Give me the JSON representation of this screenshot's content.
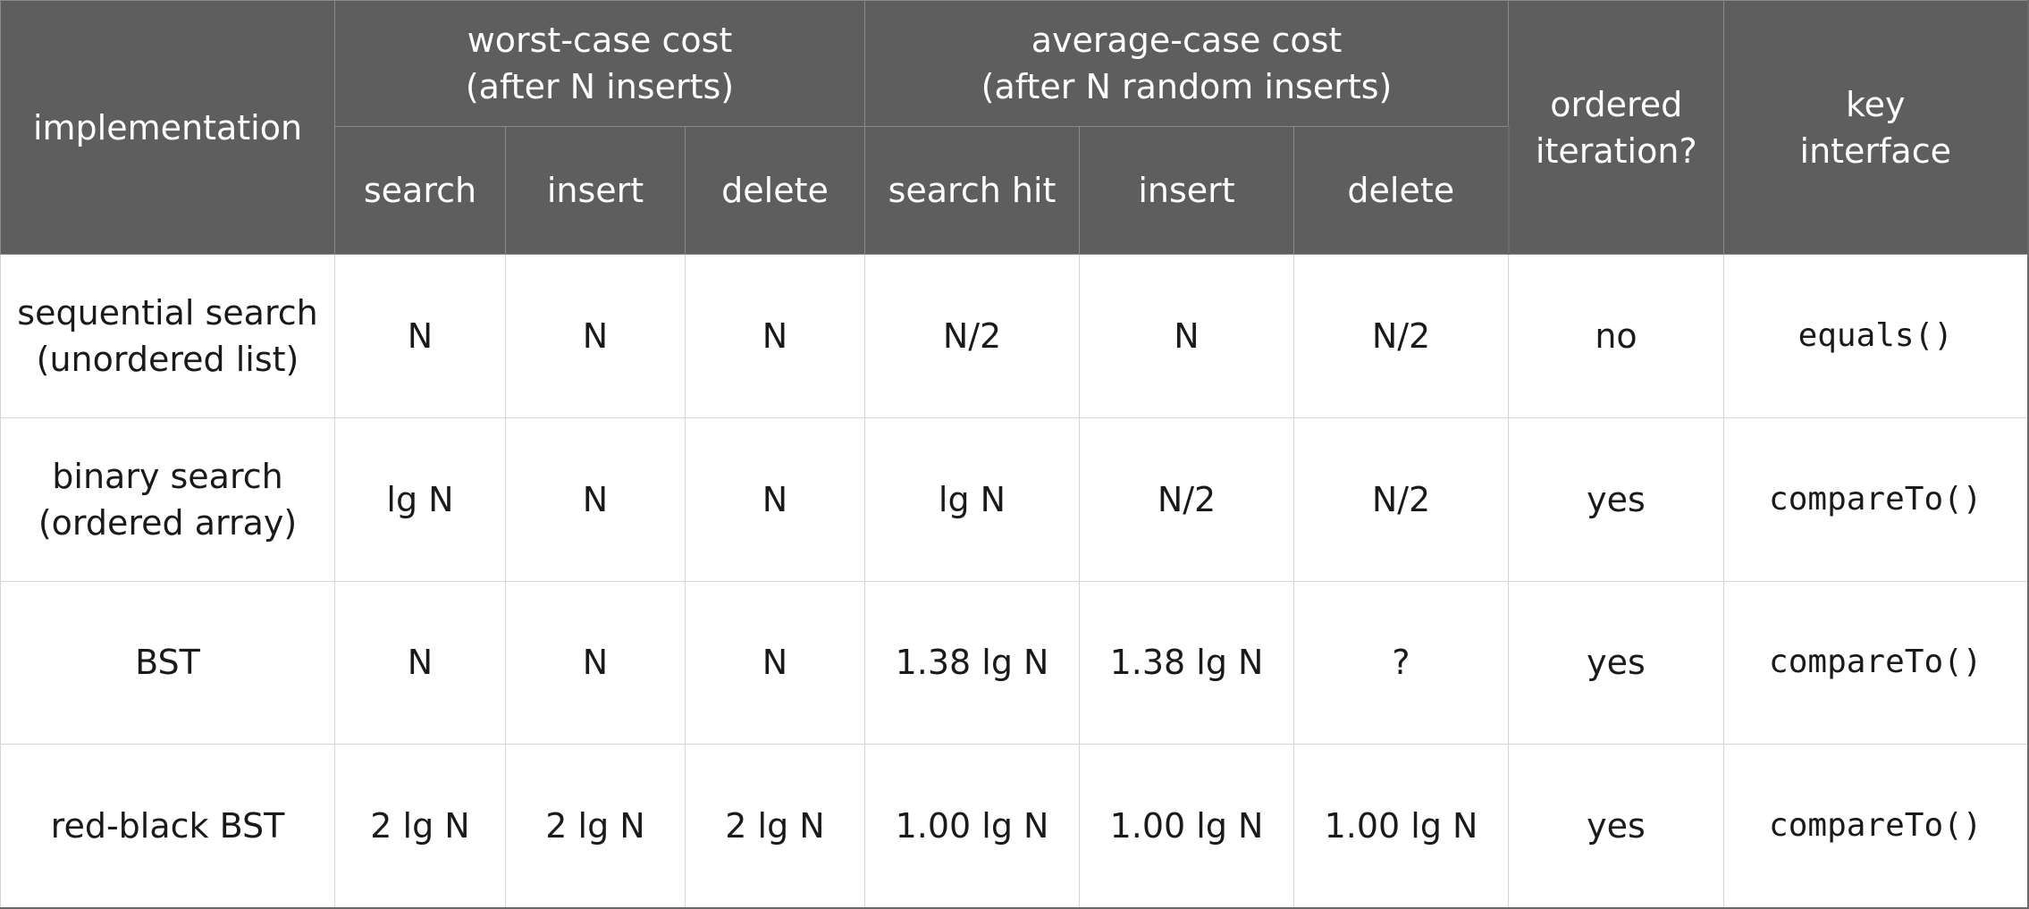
{
  "header": {
    "implementation": "implementation",
    "worst_case": {
      "line1": "worst-case cost",
      "line2": "(after N inserts)"
    },
    "average_case": {
      "line1": "average-case cost",
      "line2": "(after N random inserts)"
    },
    "ordered_iteration": {
      "line1": "ordered",
      "line2": "iteration?"
    },
    "key_interface": {
      "line1": "key",
      "line2": "interface"
    },
    "sub_columns": [
      "search",
      "insert",
      "delete",
      "search hit",
      "insert",
      "delete"
    ]
  },
  "rows": [
    {
      "impl": [
        "sequential search",
        "(unordered list)"
      ],
      "cells": [
        "N",
        "N",
        "N",
        "N/2",
        "N",
        "N/2"
      ],
      "ordered": "no",
      "key": "equals()"
    },
    {
      "impl": [
        "binary search",
        "(ordered array)"
      ],
      "cells": [
        "lg N",
        "N",
        "N",
        "lg N",
        "N/2",
        "N/2"
      ],
      "ordered": "yes",
      "key": "compareTo()"
    },
    {
      "impl": [
        "BST"
      ],
      "cells": [
        "N",
        "N",
        "N",
        "1.38 lg N",
        "1.38 lg N",
        "?"
      ],
      "ordered": "yes",
      "key": "compareTo()"
    },
    {
      "impl": [
        "red-black BST"
      ],
      "cells": [
        "2 lg N",
        "2 lg N",
        "2 lg N",
        "1.00 lg N",
        "1.00 lg N",
        "1.00 lg N"
      ],
      "ordered": "yes",
      "key": "compareTo()"
    }
  ]
}
